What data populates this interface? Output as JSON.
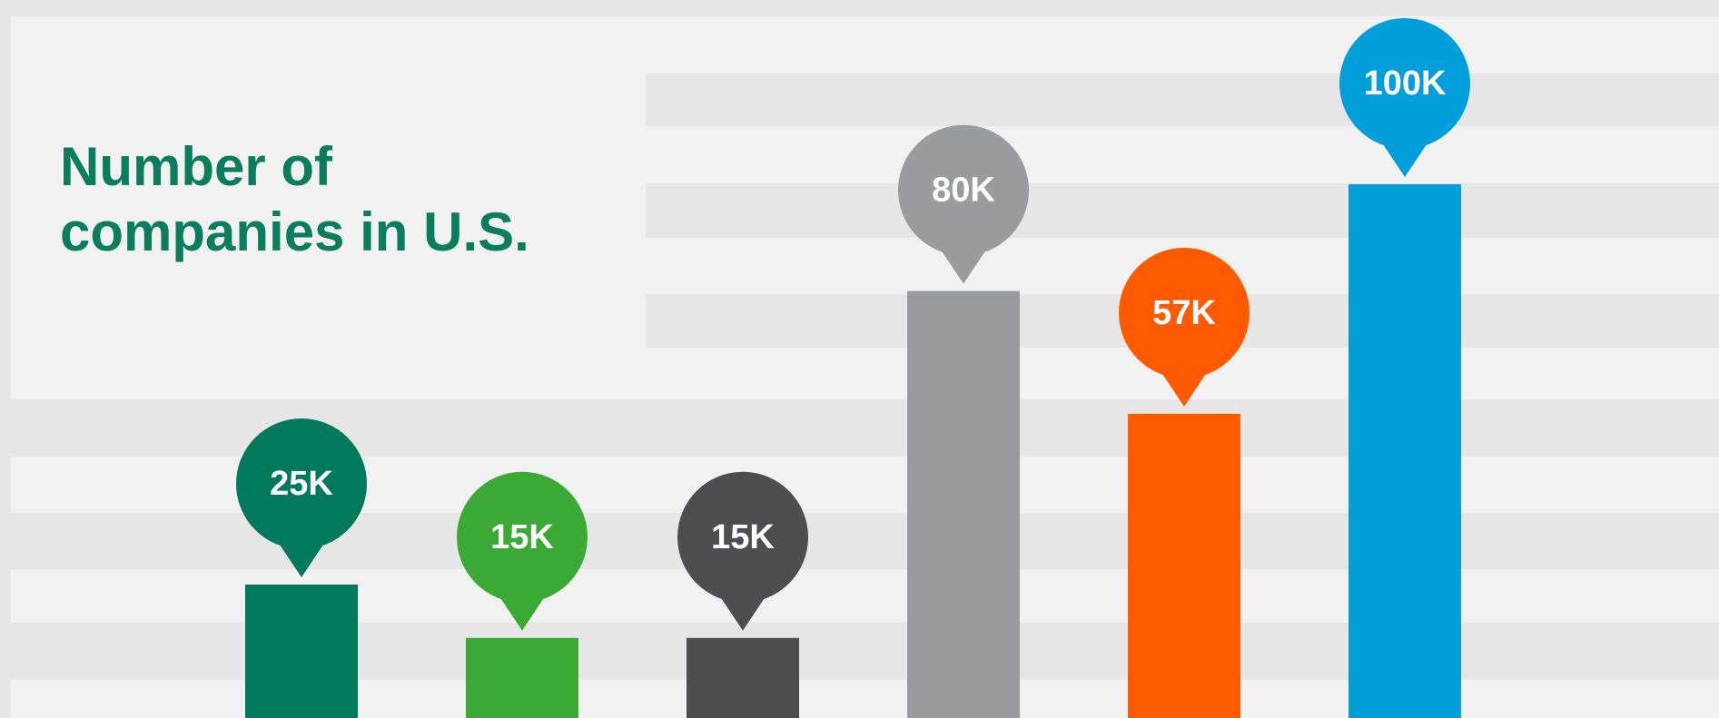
{
  "chart_data": {
    "type": "bar",
    "title": "Number of companies in U.S.",
    "categories": [
      null,
      null,
      null,
      null,
      null,
      null
    ],
    "values": [
      25,
      15,
      15,
      80,
      57,
      100
    ],
    "value_labels": [
      "25K",
      "15K",
      "15K",
      "80K",
      "57K",
      "100K"
    ],
    "colors": [
      "#007a5a",
      "#3aaa35",
      "#4d4e52",
      "#9a9b9d",
      "#ff5a00",
      "#009fdb"
    ]
  }
}
